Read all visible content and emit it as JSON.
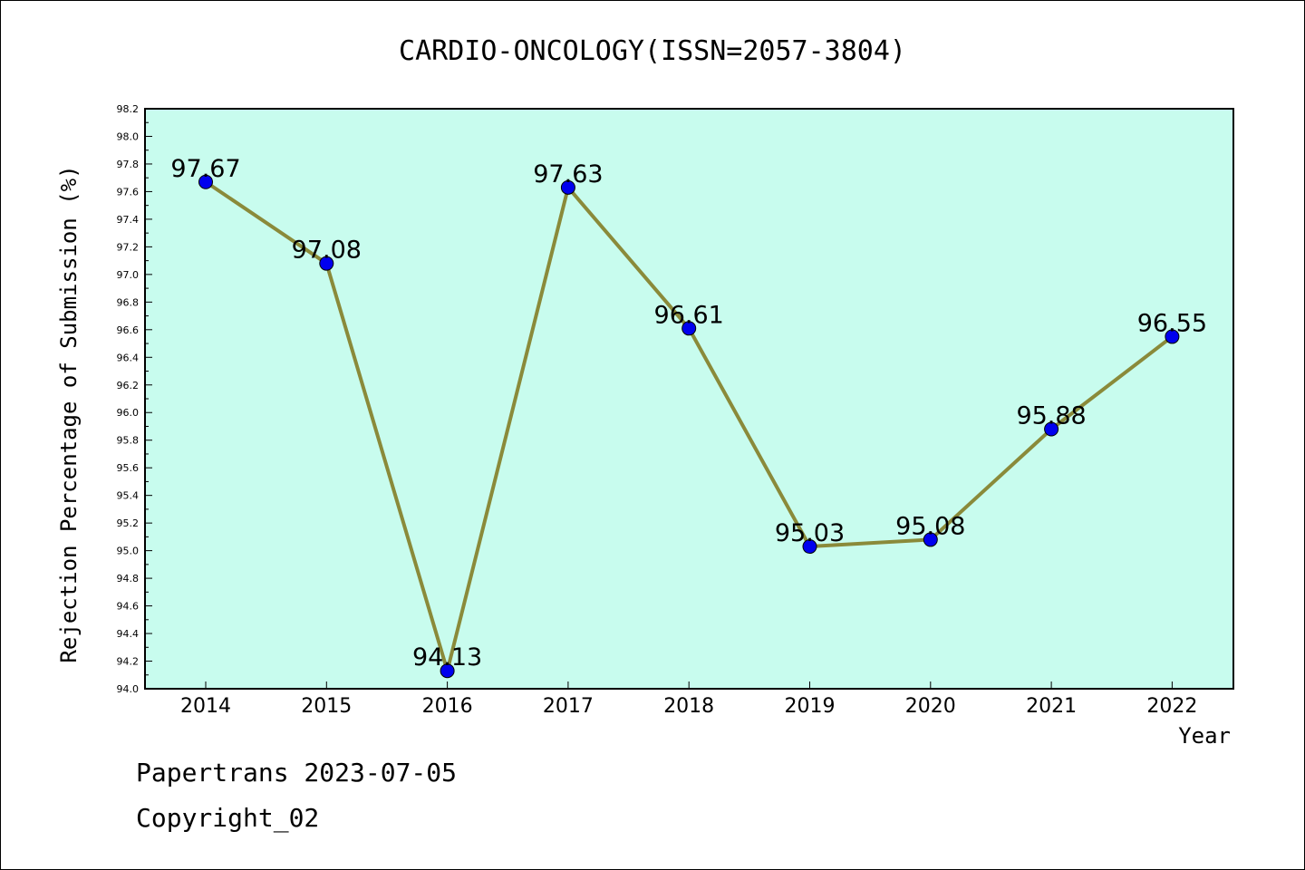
{
  "chart_data": {
    "type": "line",
    "title": "CARDIO-ONCOLOGY(ISSN=2057-3804)",
    "xlabel": "Year",
    "ylabel": "Rejection Percentage of Submission (%)",
    "categories": [
      "2014",
      "2015",
      "2016",
      "2017",
      "2018",
      "2019",
      "2020",
      "2021",
      "2022"
    ],
    "values": [
      97.67,
      97.08,
      94.13,
      97.63,
      96.61,
      95.03,
      95.08,
      95.88,
      96.55
    ],
    "data_labels": [
      "97.67",
      "97.08",
      "94.13",
      "97.63",
      "96.61",
      "95.03",
      "95.08",
      "95.88",
      "96.55"
    ],
    "ylim": [
      94.0,
      98.2
    ],
    "yticks": [
      "94.0",
      "94.2",
      "94.4",
      "94.6",
      "94.8",
      "95.0",
      "95.2",
      "95.4",
      "95.6",
      "95.8",
      "96.0",
      "96.2",
      "96.4",
      "96.6",
      "96.8",
      "97.0",
      "97.2",
      "97.4",
      "97.6",
      "97.8",
      "98.0",
      "98.2"
    ],
    "grid": false,
    "colors": {
      "plot_background": "#c8fcee",
      "line": "#8a8a3a",
      "marker": "#0000ee"
    }
  },
  "footer": {
    "line1": "Papertrans 2023-07-05",
    "line2": "Copyright_02"
  }
}
